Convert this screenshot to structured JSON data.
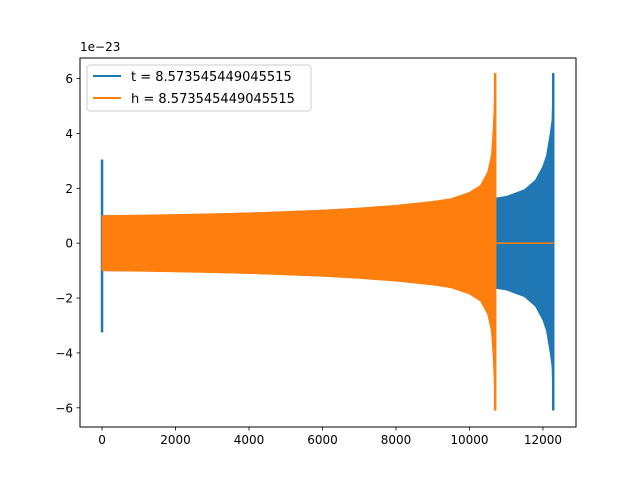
{
  "chart_data": {
    "type": "line",
    "title": "",
    "xlabel": "",
    "ylabel": "",
    "y_offset_label": "1e−23",
    "xlim": [
      -600,
      12900
    ],
    "ylim": [
      -6.7,
      6.75
    ],
    "x_ticks": [
      0,
      2000,
      4000,
      6000,
      8000,
      10000,
      12000
    ],
    "y_ticks": [
      -6,
      -4,
      -2,
      0,
      2,
      4,
      6
    ],
    "grid": false,
    "legend_position": "top-left",
    "series": [
      {
        "name": "t = 8.573545449045515",
        "color": "#1f77b4",
        "note": "",
        "start_spike": {
          "x": 0,
          "upper": 3.05,
          "lower": -3.25
        },
        "envelope_x": [
          0,
          1000,
          2000,
          3000,
          4000,
          5000,
          6000,
          7000,
          8000,
          9000,
          10000,
          10600,
          11000,
          11500,
          11800,
          12000,
          12100,
          12200,
          12250,
          12280
        ],
        "envelope_upper": [
          1.0,
          1.01,
          1.03,
          1.06,
          1.1,
          1.14,
          1.2,
          1.27,
          1.37,
          1.47,
          1.6,
          1.62,
          1.7,
          1.95,
          2.3,
          2.8,
          3.2,
          4.0,
          4.5,
          6.2
        ],
        "envelope_lower": [
          -1.0,
          -1.01,
          -1.03,
          -1.06,
          -1.1,
          -1.14,
          -1.2,
          -1.27,
          -1.37,
          -1.47,
          -1.6,
          -1.62,
          -1.7,
          -1.95,
          -2.3,
          -2.8,
          -3.2,
          -4.0,
          -4.5,
          -6.1
        ],
        "end_x": 12290
      },
      {
        "name": "h = 8.573545449045515",
        "color": "#ff7f0e",
        "start_spike": {
          "x": 0,
          "upper": 0.95,
          "lower": -0.95
        },
        "envelope_x": [
          0,
          1000,
          2000,
          3000,
          4000,
          5000,
          6000,
          7000,
          8000,
          9000,
          9500,
          10000,
          10300,
          10500,
          10600,
          10650,
          10680,
          10700
        ],
        "envelope_upper": [
          1.0,
          1.02,
          1.04,
          1.07,
          1.1,
          1.15,
          1.2,
          1.28,
          1.38,
          1.52,
          1.62,
          1.85,
          2.1,
          2.6,
          3.2,
          4.2,
          5.2,
          6.2
        ],
        "envelope_lower": [
          -1.0,
          -1.02,
          -1.04,
          -1.07,
          -1.1,
          -1.15,
          -1.2,
          -1.28,
          -1.38,
          -1.52,
          -1.62,
          -1.85,
          -2.1,
          -2.6,
          -3.2,
          -4.2,
          -5.2,
          -6.1
        ],
        "flat_after": {
          "x_from": 10700,
          "x_to": 12290,
          "y": 0
        }
      }
    ]
  }
}
